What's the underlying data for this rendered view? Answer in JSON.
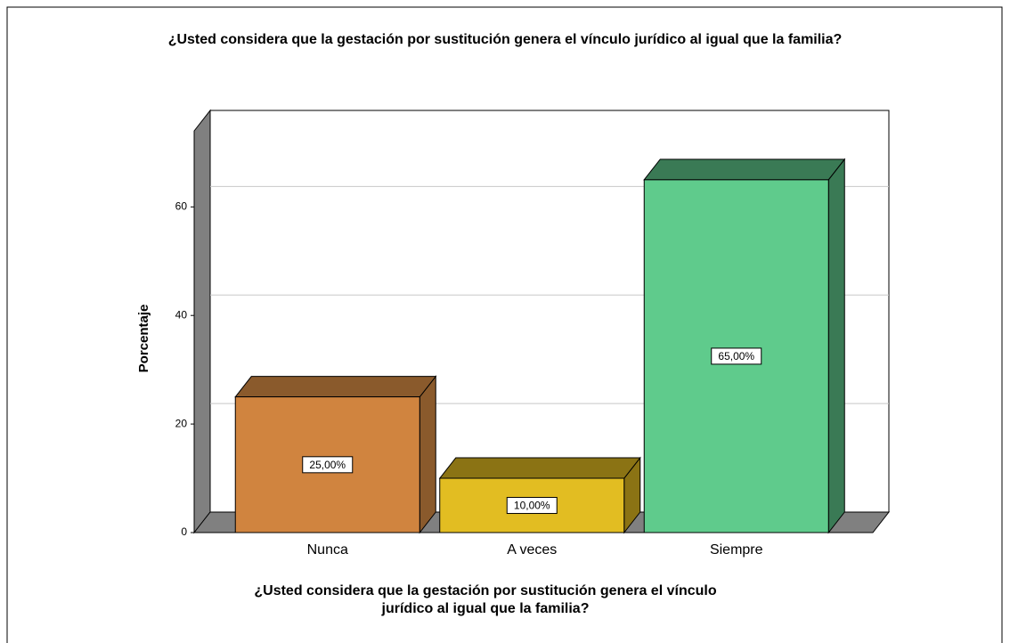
{
  "chart_data": {
    "type": "bar3d",
    "title": "¿Usted considera que la gestación por sustitución genera el vínculo jurídico al igual que la familia?",
    "ylabel": "Porcentaje",
    "xlabel": [
      "¿Usted considera que la gestación por sustitución genera el vínculo",
      "jurídico al igual que la familia?"
    ],
    "categories": [
      "Nunca",
      "A veces",
      "Siempre"
    ],
    "values": [
      25,
      10,
      65
    ],
    "value_labels": [
      "25,00%",
      "10,00%",
      "65,00%"
    ],
    "colors": [
      "#d0843f",
      "#e2bd22",
      "#5fcb8c"
    ],
    "top_colors": [
      "#8a5a2c",
      "#8b7314",
      "#3a7a55"
    ],
    "ylim": [
      0,
      74
    ],
    "yticks": [
      0,
      20,
      40,
      60
    ],
    "grid": true
  }
}
